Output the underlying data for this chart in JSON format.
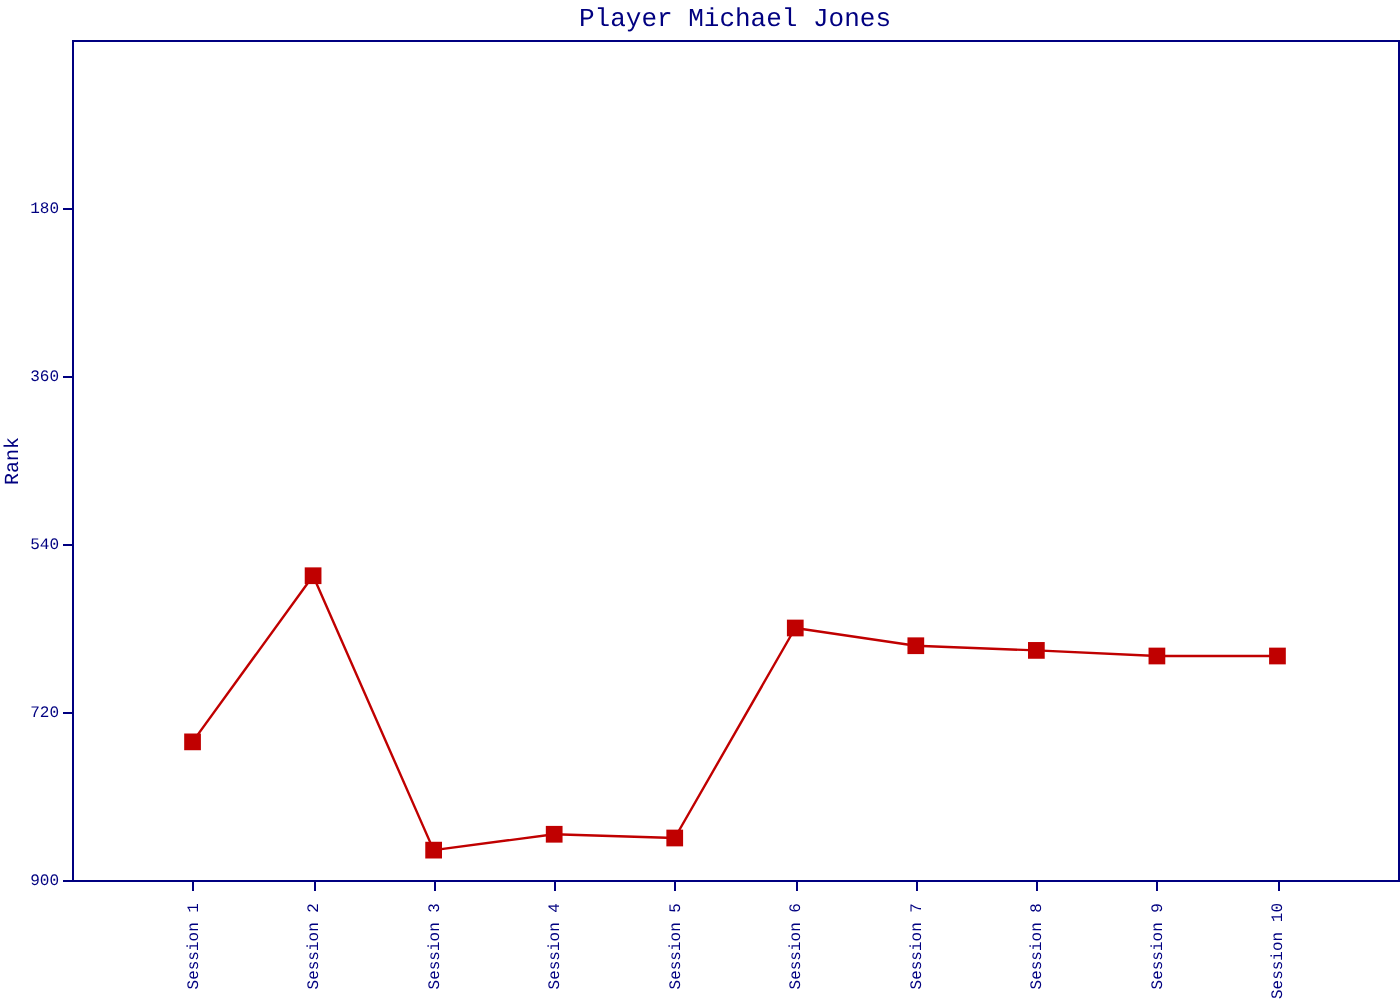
{
  "chart_data": {
    "type": "line",
    "title": "Player Michael Jones",
    "ylabel": "Rank",
    "categories": [
      "Session 1",
      "Session 2",
      "Session 3",
      "Session 4",
      "Session 5",
      "Session 6",
      "Session 7",
      "Session 8",
      "Session 9",
      "Session 10"
    ],
    "series": [
      {
        "color": "#c00000",
        "values": [
          752,
          574,
          868,
          851,
          855,
          630,
          649,
          654,
          660,
          660
        ]
      }
    ],
    "ylim": [
      900,
      0
    ],
    "yticks": [
      180,
      360,
      540,
      720,
      900
    ],
    "marker": "square",
    "line_style": "solid",
    "grid": false
  }
}
